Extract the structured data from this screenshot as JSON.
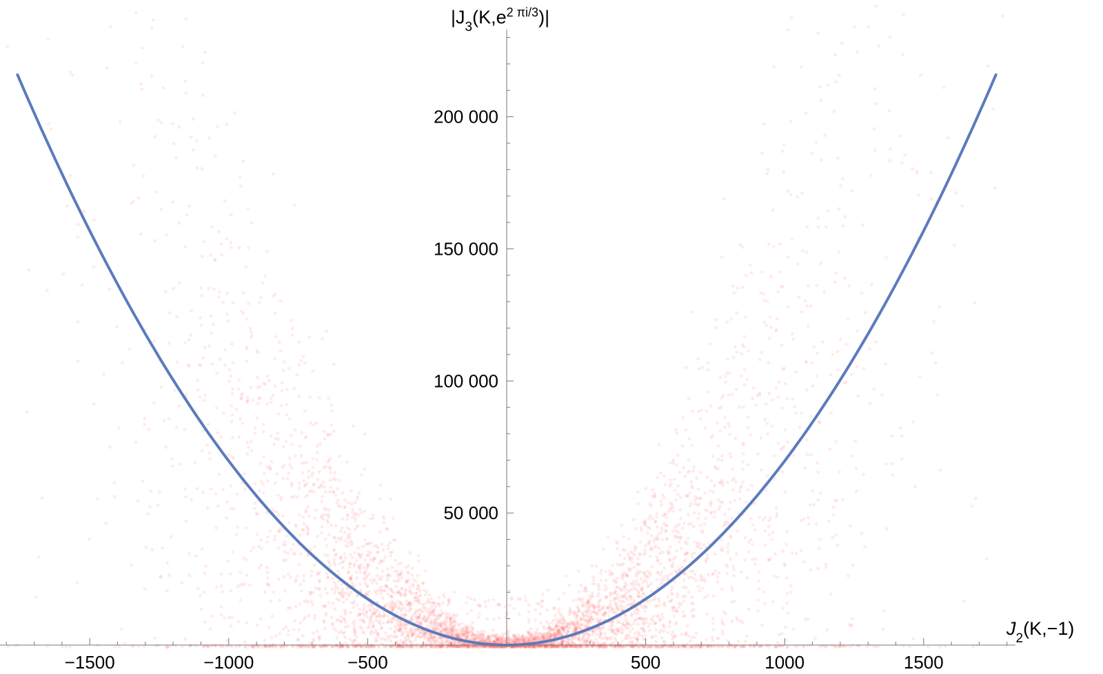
{
  "chart_data": {
    "type": "scatter",
    "xlabel": {
      "text": "J",
      "sub": "2",
      "rest": "(K,−1)"
    },
    "ylabel": {
      "open": "|J",
      "sub": "3",
      "mid": "(K,e",
      "sup": "2 πi/3",
      "close": ")|"
    },
    "xlim": [
      -1830,
      1830
    ],
    "ylim": [
      0,
      233000
    ],
    "x_ticks": [
      -1500,
      -1000,
      -500,
      500,
      1000,
      1500
    ],
    "x_tick_labels": [
      "−1500",
      "−1000",
      "−500",
      "500",
      "1000",
      "1500"
    ],
    "x_minor_step": 100,
    "y_ticks": [
      50000,
      100000,
      150000,
      200000
    ],
    "y_tick_labels": [
      "50 000",
      "100 000",
      "150 000",
      "200 000"
    ],
    "y_minor_step": 10000,
    "grid": false,
    "legend": "none",
    "scatter": {
      "color": "#ff6666",
      "opacity": 0.13,
      "trend": "y ≈ 0.0697·x², spread widening with |x|",
      "x_range": [
        -1830,
        1830
      ]
    },
    "fit_curve": {
      "color": "#5b7bbd",
      "equation": "y = 0.0697 x^2",
      "coefficient": 0.0697,
      "x_range": [
        -1760,
        1760
      ]
    }
  }
}
